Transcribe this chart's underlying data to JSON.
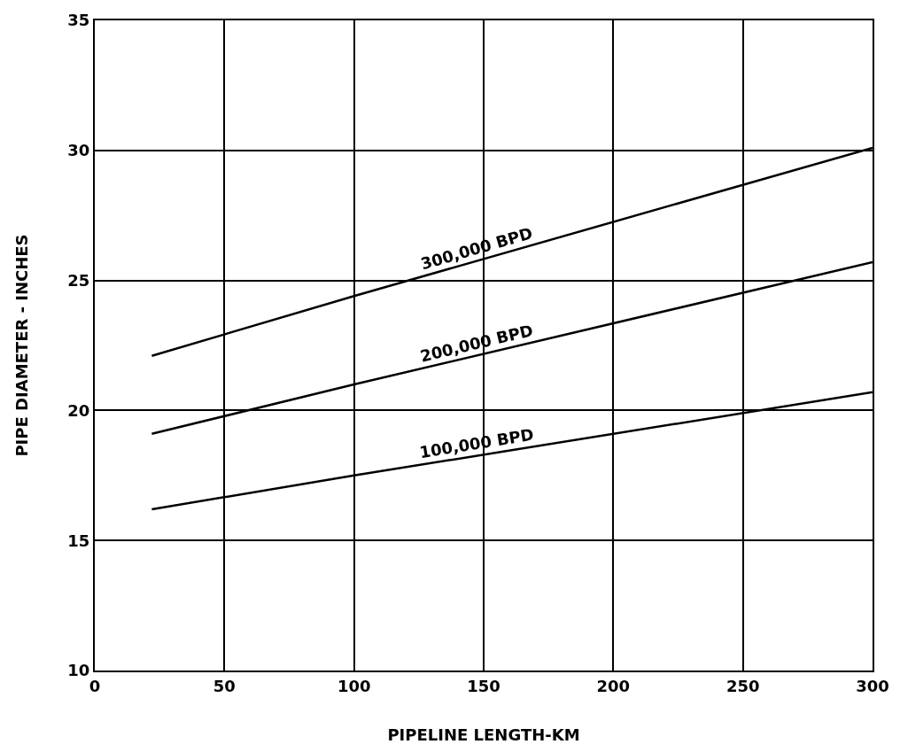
{
  "chart_data": {
    "type": "line",
    "xlabel": "PIPELINE LENGTH-KM",
    "ylabel": "PIPE DIAMETER - INCHES",
    "x": [
      22,
      100,
      300
    ],
    "series": [
      {
        "name": "300,000 BPD",
        "color": "#000000",
        "values": [
          22.1,
          24.4,
          30.1
        ]
      },
      {
        "name": "200,000 BPD",
        "color": "#000000",
        "values": [
          19.1,
          21.0,
          25.7
        ]
      },
      {
        "name": "100,000 BPD",
        "color": "#000000",
        "values": [
          16.2,
          17.5,
          20.7
        ]
      }
    ],
    "xlim": [
      0,
      300
    ],
    "xticks": [
      0,
      50,
      100,
      150,
      200,
      250,
      300
    ],
    "ylim": [
      10,
      35
    ],
    "yticks": [
      10,
      15,
      20,
      25,
      30,
      35
    ],
    "grid": true,
    "legend": false,
    "marker": "none",
    "line_style": "solid"
  }
}
